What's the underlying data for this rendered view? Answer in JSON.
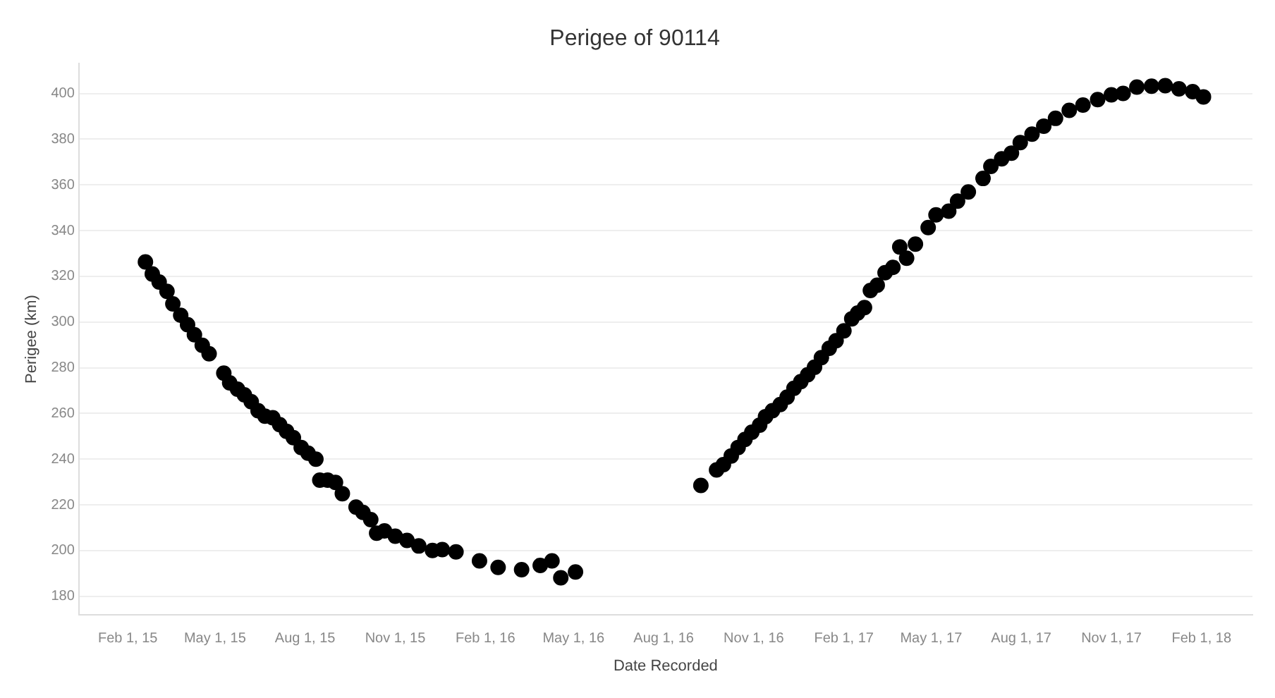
{
  "chart_data": {
    "type": "scatter",
    "title": "Perigee of 90114",
    "xlabel": "Date Recorded",
    "ylabel": "Perigee (km)",
    "marker": "circle",
    "grid": "y",
    "legend": false,
    "xlim": [
      "2014-12-13",
      "2018-03-25"
    ],
    "ylim": [
      172,
      413
    ],
    "xticks": [
      {
        "value": "2015-02-01",
        "label": "Feb 1, 15"
      },
      {
        "value": "2015-05-01",
        "label": "May 1, 15"
      },
      {
        "value": "2015-08-01",
        "label": "Aug 1, 15"
      },
      {
        "value": "2015-11-01",
        "label": "Nov 1, 15"
      },
      {
        "value": "2016-02-01",
        "label": "Feb 1, 16"
      },
      {
        "value": "2016-05-01",
        "label": "May 1, 16"
      },
      {
        "value": "2016-08-01",
        "label": "Aug 1, 16"
      },
      {
        "value": "2016-11-01",
        "label": "Nov 1, 16"
      },
      {
        "value": "2017-02-01",
        "label": "Feb 1, 17"
      },
      {
        "value": "2017-05-01",
        "label": "May 1, 17"
      },
      {
        "value": "2017-08-01",
        "label": "Aug 1, 17"
      },
      {
        "value": "2017-11-01",
        "label": "Nov 1, 17"
      },
      {
        "value": "2018-02-01",
        "label": "Feb 1, 18"
      }
    ],
    "yticks": [
      180,
      200,
      220,
      240,
      260,
      280,
      300,
      320,
      340,
      360,
      380,
      400
    ],
    "series": [
      {
        "color": "#000000",
        "x": [
          "2015-02-19",
          "2015-02-26",
          "2015-03-05",
          "2015-03-13",
          "2015-03-19",
          "2015-03-27",
          "2015-04-03",
          "2015-04-10",
          "2015-04-18",
          "2015-04-25",
          "2015-05-10",
          "2015-05-16",
          "2015-05-24",
          "2015-05-31",
          "2015-06-07",
          "2015-06-14",
          "2015-06-21",
          "2015-06-29",
          "2015-07-06",
          "2015-07-13",
          "2015-07-20",
          "2015-07-28",
          "2015-08-04",
          "2015-08-12",
          "2015-08-16",
          "2015-08-24",
          "2015-09-01",
          "2015-09-08",
          "2015-09-22",
          "2015-09-29",
          "2015-10-07",
          "2015-10-13",
          "2015-10-21",
          "2015-11-01",
          "2015-11-13",
          "2015-11-25",
          "2015-12-09",
          "2015-12-19",
          "2016-01-02",
          "2016-01-26",
          "2016-02-14",
          "2016-03-09",
          "2016-03-28",
          "2016-04-09",
          "2016-04-18",
          "2016-05-03",
          "2016-09-08",
          "2016-09-24",
          "2016-10-01",
          "2016-10-09",
          "2016-10-16",
          "2016-10-23",
          "2016-10-30",
          "2016-11-07",
          "2016-11-13",
          "2016-11-20",
          "2016-11-28",
          "2016-12-05",
          "2016-12-12",
          "2016-12-19",
          "2016-12-26",
          "2017-01-02",
          "2017-01-09",
          "2017-01-17",
          "2017-01-24",
          "2017-02-01",
          "2017-02-09",
          "2017-02-15",
          "2017-02-22",
          "2017-02-28",
          "2017-03-07",
          "2017-03-15",
          "2017-03-23",
          "2017-03-30",
          "2017-04-06",
          "2017-04-15",
          "2017-04-28",
          "2017-05-06",
          "2017-05-19",
          "2017-05-28",
          "2017-06-08",
          "2017-06-23",
          "2017-07-01",
          "2017-07-12",
          "2017-07-22",
          "2017-07-31",
          "2017-08-12",
          "2017-08-24",
          "2017-09-05",
          "2017-09-19",
          "2017-10-03",
          "2017-10-18",
          "2017-11-01",
          "2017-11-13",
          "2017-11-27",
          "2017-12-12",
          "2017-12-26",
          "2018-01-09",
          "2018-01-23",
          "2018-02-03"
        ],
        "values": [
          326.3,
          321.0,
          317.5,
          313.4,
          307.9,
          302.9,
          298.8,
          294.4,
          289.8,
          286.1,
          277.6,
          273.4,
          270.6,
          268.1,
          265.1,
          261.2,
          258.8,
          258.1,
          255.1,
          252.2,
          249.4,
          245.1,
          242.6,
          240.0,
          230.8,
          230.8,
          229.8,
          224.9,
          219.0,
          216.7,
          213.5,
          207.6,
          208.6,
          206.3,
          204.4,
          202.0,
          200.0,
          200.4,
          199.4,
          195.5,
          192.6,
          191.6,
          193.5,
          195.5,
          188.1,
          190.6,
          228.5,
          235.3,
          237.6,
          241.4,
          245.1,
          248.6,
          251.8,
          254.9,
          258.6,
          261.2,
          263.9,
          267.1,
          271.0,
          273.9,
          276.9,
          280.2,
          284.4,
          288.5,
          291.8,
          296.1,
          301.4,
          303.9,
          306.3,
          313.8,
          316.1,
          321.6,
          323.9,
          332.8,
          327.9,
          334.1,
          341.3,
          346.9,
          348.5,
          352.9,
          356.9,
          362.8,
          368.1,
          371.4,
          373.9,
          378.5,
          382.2,
          385.7,
          389.1,
          392.6,
          394.9,
          397.3,
          399.4,
          400.0,
          402.8,
          403.2,
          403.4,
          402.0,
          400.8,
          398.5
        ]
      }
    ]
  }
}
